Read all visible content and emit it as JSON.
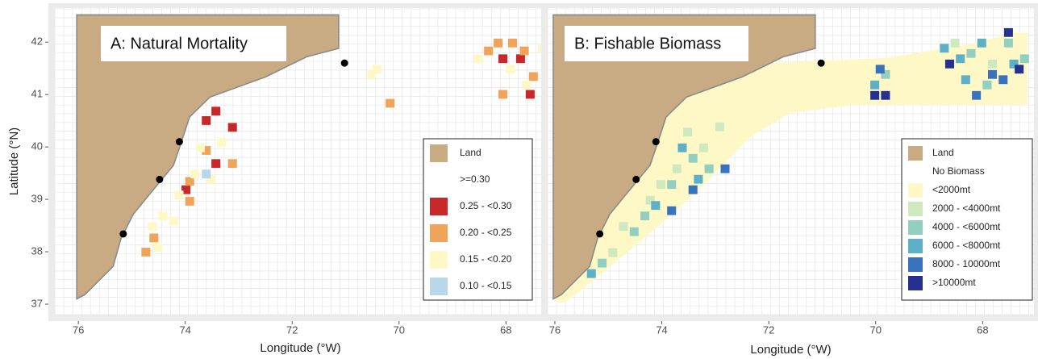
{
  "y_label": "Latitude (°N)",
  "panels": [
    {
      "title": "A: Natural Mortality",
      "x_label": "Longitude (°W)",
      "xlim": [
        76.44,
        67.25
      ],
      "ylim": [
        36.8,
        42.65
      ],
      "xticks": [
        76,
        74,
        72,
        70,
        68
      ],
      "yticks": [
        37,
        38,
        39,
        40,
        41,
        42
      ],
      "legend": [
        {
          "label": "Land",
          "color": "#c8ab83"
        },
        {
          "label": ">=0.30",
          "color": "#ffffff"
        },
        {
          "label": "0.25 - <0.30",
          "color": "#c8282a"
        },
        {
          "label": "0.20 - <0.25",
          "color": "#f0a45a"
        },
        {
          "label": "0.15 - <0.20",
          "color": "#fdf8c6"
        },
        {
          "label": "0.10 - <0.15",
          "color": "#b8d7ea"
        }
      ]
    },
    {
      "title": "B: Fishable Biomass",
      "x_label": "Longitude (°W)",
      "xlim": [
        76.135,
        67.04
      ],
      "ylim": [
        36.8,
        42.65
      ],
      "xticks": [
        76,
        74,
        72,
        70,
        68
      ],
      "legend": [
        {
          "label": "Land",
          "color": "#c8ab83"
        },
        {
          "label": "No Biomass",
          "color": "#ffffff"
        },
        {
          "label": "<2000mt",
          "color": "#fdf8c6"
        },
        {
          "label": "2000 - <4000mt",
          "color": "#cfe9bf"
        },
        {
          "label": "4000 - <6000mt",
          "color": "#93cfc0"
        },
        {
          "label": "6000 - <8000mt",
          "color": "#5eb0c6"
        },
        {
          "label": "8000 - 10000mt",
          "color": "#3a73bd"
        },
        {
          "label": ">10000mt",
          "color": "#25308f"
        }
      ]
    }
  ]
}
